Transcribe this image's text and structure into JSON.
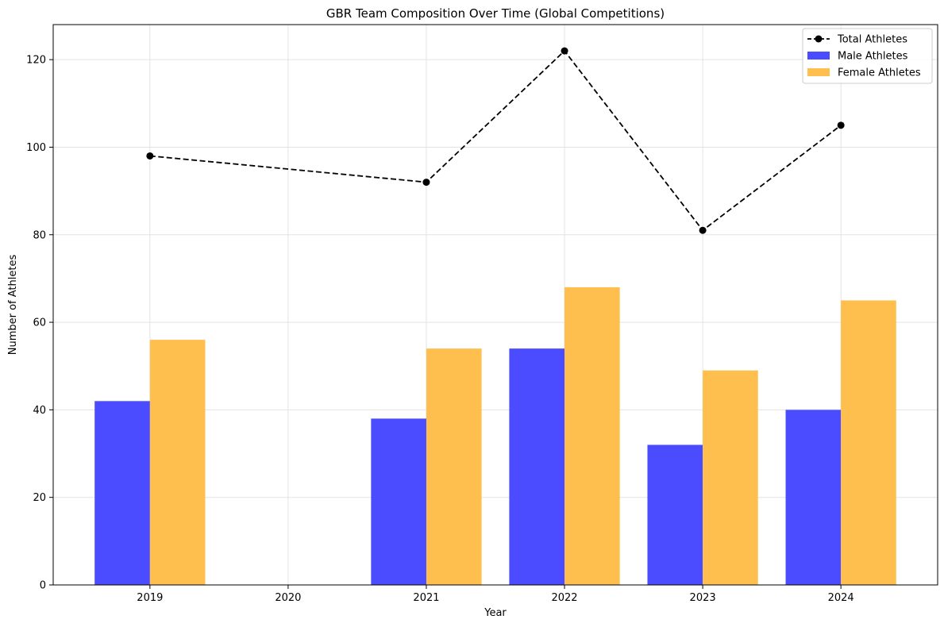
{
  "chart_data": {
    "type": "bar",
    "title": "GBR Team Composition Over Time (Global Competitions)",
    "xlabel": "Year",
    "ylabel": "Number of Athletes",
    "categories": [
      "2019",
      "2020",
      "2021",
      "2022",
      "2023",
      "2024"
    ],
    "ylim": [
      0,
      128
    ],
    "yticks": [
      0,
      20,
      40,
      60,
      80,
      100,
      120
    ],
    "grid": true,
    "legend_position": "top-right",
    "series": [
      {
        "name": "Male Athletes",
        "kind": "bar",
        "color": "#4b4bff",
        "values": [
          42,
          null,
          38,
          54,
          32,
          40
        ]
      },
      {
        "name": "Female Athletes",
        "kind": "bar",
        "color": "#ffbf4f",
        "values": [
          56,
          null,
          54,
          68,
          49,
          65
        ]
      },
      {
        "name": "Total Athletes",
        "kind": "line",
        "style": "dashed",
        "marker": "circle",
        "color": "#000000",
        "values": [
          98,
          null,
          92,
          122,
          81,
          105
        ]
      }
    ]
  }
}
